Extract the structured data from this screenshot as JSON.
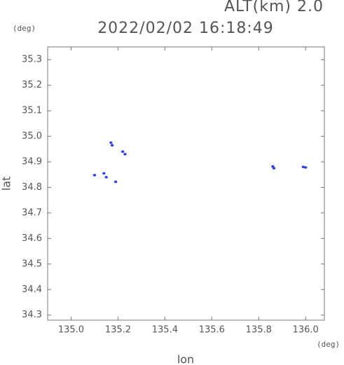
{
  "chart_data": {
    "type": "scatter",
    "title": "2022/02/02 16:18:49",
    "subtitle": "ALT(km) 2.0",
    "y_unit": "(deg)",
    "x_unit": "(deg)",
    "xlabel": "lon",
    "ylabel": "lat",
    "xlim": [
      134.9,
      136.08
    ],
    "ylim": [
      34.28,
      35.35
    ],
    "xticks": [
      {
        "value": 135.0,
        "label": "135.0"
      },
      135.2,
      135.4,
      135.6,
      135.8,
      {
        "value": 136.0,
        "label": "136.0"
      }
    ],
    "yticks": [
      34.3,
      34.4,
      34.5,
      34.6,
      34.7,
      34.8,
      34.9,
      {
        "value": 35.0,
        "label": "35.0"
      },
      35.1,
      35.2,
      35.3
    ],
    "series": [
      {
        "color": "#3344dd",
        "x": [
          135.17,
          135.175,
          135.22,
          135.23,
          135.1,
          135.14,
          135.15,
          135.19,
          135.86,
          135.865,
          135.99,
          136.0
        ],
        "values": [
          34.975,
          34.965,
          34.94,
          34.93,
          34.848,
          34.855,
          34.84,
          34.822,
          34.882,
          34.875,
          34.88,
          34.878
        ]
      }
    ]
  }
}
